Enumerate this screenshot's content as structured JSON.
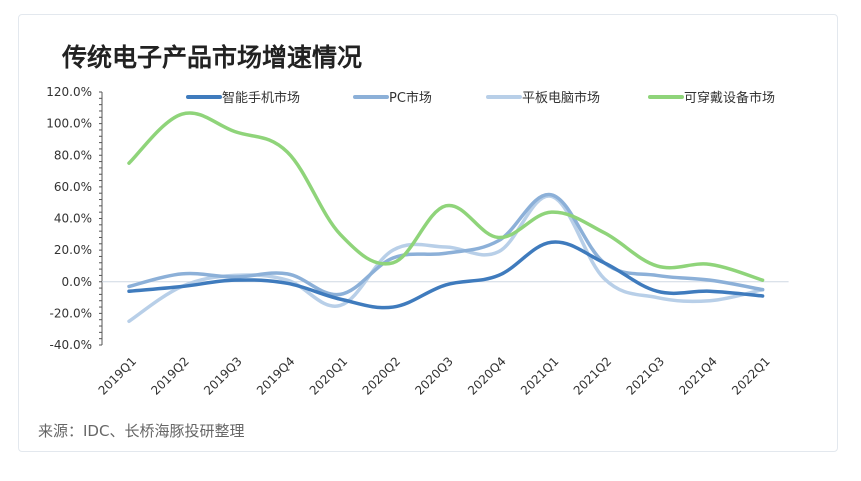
{
  "chart_data": {
    "type": "line",
    "title": "传统电子产品市场增速情况",
    "source": "来源：IDC、长桥海豚投研整理",
    "categories": [
      "2019Q1",
      "2019Q2",
      "2019Q3",
      "2019Q4",
      "2020Q1",
      "2020Q2",
      "2020Q3",
      "2020Q4",
      "2021Q1",
      "2021Q2",
      "2021Q3",
      "2021Q4",
      "2022Q1"
    ],
    "yticks": [
      "120.0%",
      "100.0%",
      "80.0%",
      "60.0%",
      "40.0%",
      "20.0%",
      "0.0%",
      "-20.0%",
      "-40.0%"
    ],
    "ylim": [
      -40,
      120
    ],
    "legend_position": "top",
    "series": [
      {
        "name": "智能手机市场",
        "color": "#3f7bbd",
        "values": [
          -6,
          -3,
          1,
          -1,
          -11,
          -16,
          -2,
          4,
          25,
          12,
          -6,
          -6,
          -9
        ]
      },
      {
        "name": "PC市场",
        "color": "#8cb0d8",
        "values": [
          -3,
          5,
          3,
          5,
          -8,
          15,
          18,
          26,
          55,
          12,
          4,
          1,
          -5
        ]
      },
      {
        "name": "平板电脑市场",
        "color": "#b8cfe8",
        "values": [
          -25,
          -3,
          4,
          1,
          -15,
          20,
          22,
          19,
          54,
          2,
          -10,
          -12,
          -5
        ]
      },
      {
        "name": "可穿戴设备市场",
        "color": "#8fd47a",
        "values": [
          75,
          106,
          95,
          82,
          30,
          12,
          48,
          28,
          44,
          31,
          10,
          11,
          1
        ]
      }
    ]
  }
}
